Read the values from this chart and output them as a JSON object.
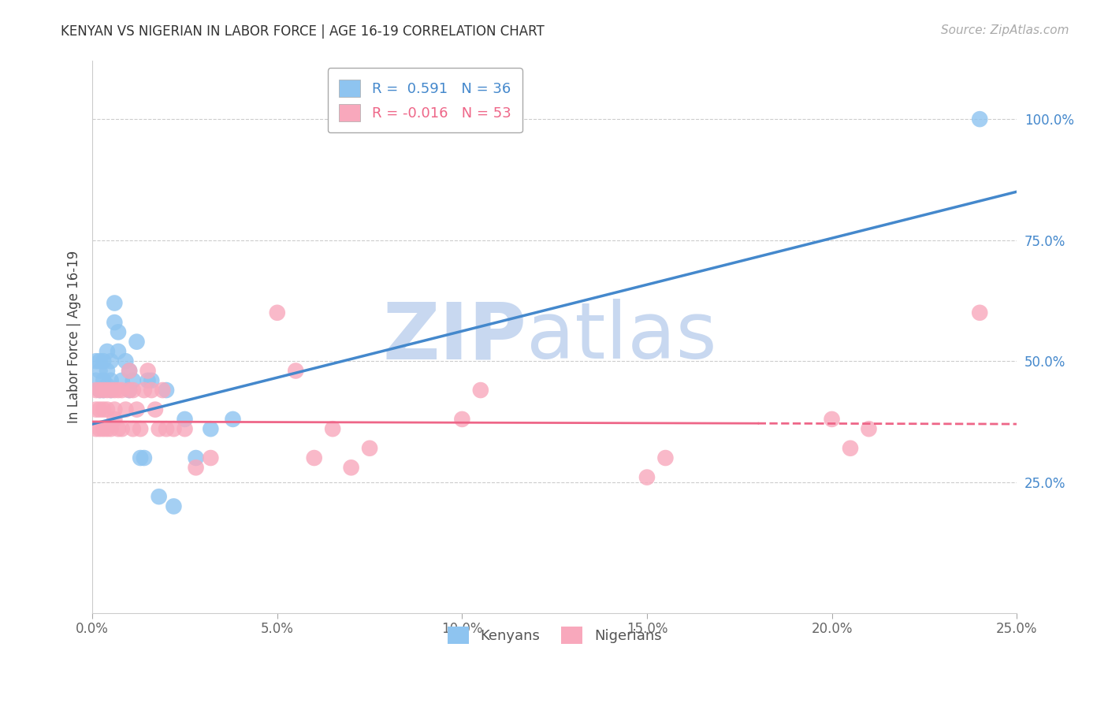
{
  "title": "KENYAN VS NIGERIAN IN LABOR FORCE | AGE 16-19 CORRELATION CHART",
  "source": "Source: ZipAtlas.com",
  "ylabel": "In Labor Force | Age 16-19",
  "xlim": [
    0.0,
    0.25
  ],
  "ylim": [
    -0.02,
    1.12
  ],
  "xticks": [
    0.0,
    0.05,
    0.1,
    0.15,
    0.2,
    0.25
  ],
  "xtick_labels": [
    "0.0%",
    "5.0%",
    "10.0%",
    "15.0%",
    "20.0%",
    "25.0%"
  ],
  "yticks": [
    0.25,
    0.5,
    0.75,
    1.0
  ],
  "ytick_labels": [
    "25.0%",
    "50.0%",
    "75.0%",
    "100.0%"
  ],
  "legend_entry1": "R =  0.591   N = 36",
  "legend_entry2": "R = -0.016   N = 53",
  "legend_label1": "Kenyans",
  "legend_label2": "Nigerians",
  "kenyan_color": "#8EC4F0",
  "nigerian_color": "#F8A8BC",
  "kenyan_line_color": "#4488CC",
  "nigerian_line_color": "#EE6688",
  "watermark_zip": "ZIP",
  "watermark_atlas": "atlas",
  "watermark_color": "#C8D8F0",
  "background_color": "#ffffff",
  "kenyan_x": [
    0.001,
    0.001,
    0.002,
    0.002,
    0.002,
    0.003,
    0.003,
    0.003,
    0.004,
    0.004,
    0.004,
    0.005,
    0.005,
    0.005,
    0.006,
    0.006,
    0.007,
    0.007,
    0.008,
    0.009,
    0.01,
    0.01,
    0.011,
    0.012,
    0.013,
    0.014,
    0.015,
    0.016,
    0.018,
    0.02,
    0.022,
    0.025,
    0.028,
    0.032,
    0.038,
    0.24
  ],
  "kenyan_y": [
    0.46,
    0.5,
    0.44,
    0.48,
    0.5,
    0.44,
    0.46,
    0.5,
    0.45,
    0.48,
    0.52,
    0.44,
    0.46,
    0.5,
    0.58,
    0.62,
    0.52,
    0.56,
    0.46,
    0.5,
    0.44,
    0.48,
    0.46,
    0.54,
    0.3,
    0.3,
    0.46,
    0.46,
    0.22,
    0.44,
    0.2,
    0.38,
    0.3,
    0.36,
    0.38,
    1.0
  ],
  "nigerian_x": [
    0.001,
    0.001,
    0.001,
    0.002,
    0.002,
    0.002,
    0.003,
    0.003,
    0.003,
    0.004,
    0.004,
    0.004,
    0.005,
    0.005,
    0.006,
    0.006,
    0.006,
    0.007,
    0.007,
    0.008,
    0.008,
    0.009,
    0.01,
    0.01,
    0.011,
    0.011,
    0.012,
    0.013,
    0.014,
    0.015,
    0.016,
    0.017,
    0.018,
    0.019,
    0.02,
    0.022,
    0.025,
    0.028,
    0.032,
    0.05,
    0.055,
    0.06,
    0.065,
    0.07,
    0.075,
    0.1,
    0.105,
    0.15,
    0.155,
    0.2,
    0.205,
    0.21,
    0.24
  ],
  "nigerian_y": [
    0.36,
    0.4,
    0.44,
    0.36,
    0.4,
    0.44,
    0.36,
    0.4,
    0.44,
    0.36,
    0.4,
    0.44,
    0.36,
    0.44,
    0.38,
    0.4,
    0.44,
    0.36,
    0.44,
    0.36,
    0.44,
    0.4,
    0.44,
    0.48,
    0.36,
    0.44,
    0.4,
    0.36,
    0.44,
    0.48,
    0.44,
    0.4,
    0.36,
    0.44,
    0.36,
    0.36,
    0.36,
    0.28,
    0.3,
    0.6,
    0.48,
    0.3,
    0.36,
    0.28,
    0.32,
    0.38,
    0.44,
    0.26,
    0.3,
    0.38,
    0.32,
    0.36,
    0.6
  ],
  "kenyan_line_x0": 0.0,
  "kenyan_line_y0": 0.37,
  "kenyan_line_x1": 0.25,
  "kenyan_line_y1": 0.85,
  "nigerian_line_x0": 0.0,
  "nigerian_line_y0": 0.375,
  "nigerian_line_x1": 0.25,
  "nigerian_line_y1": 0.37
}
